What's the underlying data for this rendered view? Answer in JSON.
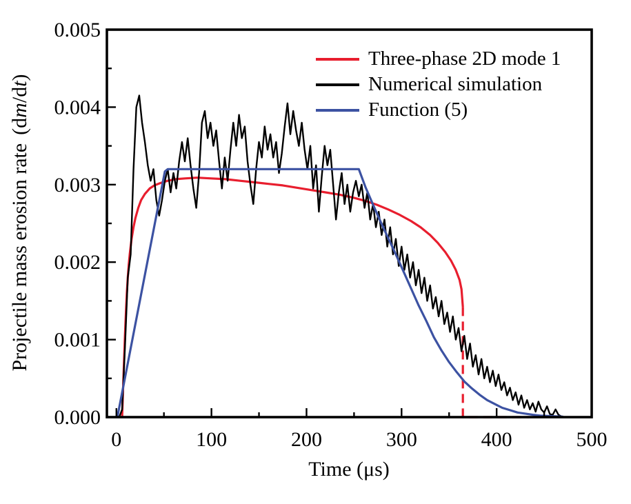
{
  "figure": {
    "x_axis_title": "Time (μs)",
    "y_axis_title_parts": {
      "prefix": "Projectile mass erosion rate",
      "open": "(d",
      "m_italic": "m",
      "slash": "/d",
      "t_italic": "t",
      "close": ")"
    }
  },
  "legend": {
    "items": [
      {
        "label": "Three-phase 2D mode 1",
        "color": "#e81e2e",
        "style": "solid"
      },
      {
        "label": "Numerical simulation",
        "color": "#000000",
        "style": "solid"
      },
      {
        "label": "Function (5)",
        "color": "#3c52a2",
        "style": "solid"
      }
    ]
  },
  "chart_data": {
    "type": "line",
    "title": "",
    "xlabel": "Time (μs)",
    "ylabel": "Projectile mass erosion rate (dm/dt)",
    "xlim": [
      -10,
      500
    ],
    "ylim": [
      0,
      0.005
    ],
    "grid": false,
    "legend_position": "upper-right-inside",
    "axes": {
      "x_major_ticks": [
        0,
        100,
        200,
        300,
        400,
        500
      ],
      "x_tick_labels": [
        "0",
        "100",
        "200",
        "300",
        "400",
        "500"
      ],
      "x_minor_ticks": [
        50,
        150,
        250,
        350,
        450
      ],
      "y_major_ticks": [
        0,
        0.001,
        0.002,
        0.003,
        0.004,
        0.005
      ],
      "y_tick_labels": [
        "0.000",
        "0.001",
        "0.002",
        "0.003",
        "0.004",
        "0.005"
      ],
      "y_minor_ticks": [
        0.0005,
        0.0015,
        0.0025,
        0.0035,
        0.0045
      ]
    },
    "series": [
      {
        "name": "Three-phase 2D mode 1",
        "color": "#e81e2e",
        "style": "solid",
        "width": 3.2,
        "y_scale": 0.001,
        "x": [
          6,
          7,
          8,
          9,
          10,
          11,
          12,
          13,
          14,
          16,
          18,
          20,
          23,
          26,
          30,
          35,
          40,
          46,
          54,
          62,
          72,
          85,
          100,
          115,
          130,
          145,
          160,
          175,
          190,
          205,
          220,
          235,
          250,
          262,
          274,
          286,
          298,
          310,
          320,
          330,
          338,
          346,
          352,
          357,
          361,
          363,
          364.5
        ],
        "y": [
          0,
          0.35,
          0.7,
          1.05,
          1.35,
          1.6,
          1.8,
          1.97,
          2.1,
          2.3,
          2.45,
          2.57,
          2.7,
          2.8,
          2.88,
          2.95,
          2.99,
          3.02,
          3.05,
          3.07,
          3.08,
          3.09,
          3.08,
          3.07,
          3.05,
          3.03,
          3.01,
          2.99,
          2.96,
          2.93,
          2.9,
          2.87,
          2.83,
          2.79,
          2.74,
          2.68,
          2.61,
          2.53,
          2.45,
          2.35,
          2.25,
          2.13,
          2.02,
          1.9,
          1.77,
          1.65,
          1.42
        ]
      },
      {
        "name": "Three-phase 2D mode 1 cutoff (dashed)",
        "color": "#e81e2e",
        "style": "dashed",
        "width": 3.2,
        "y_scale": 0.001,
        "x": [
          364.5,
          364.5,
          434
        ],
        "y": [
          1.42,
          0,
          0
        ]
      },
      {
        "name": "Numerical simulation",
        "color": "#000000",
        "style": "solid",
        "width": 2.4,
        "y_scale": 0.001,
        "x_start": 0,
        "x_step": 3,
        "y": [
          0,
          0,
          0.1,
          0.9,
          1.8,
          2.1,
          3.2,
          4.0,
          4.15,
          3.8,
          3.55,
          3.25,
          3.05,
          3.2,
          2.8,
          2.6,
          2.8,
          3.05,
          3.2,
          2.9,
          3.15,
          2.95,
          3.3,
          3.55,
          3.3,
          3.6,
          3.25,
          2.95,
          2.7,
          3.15,
          3.8,
          3.95,
          3.6,
          3.8,
          3.5,
          3.7,
          3.3,
          2.95,
          3.35,
          3.05,
          3.45,
          3.8,
          3.5,
          3.9,
          3.6,
          3.75,
          3.3,
          3.0,
          2.75,
          3.2,
          3.55,
          3.35,
          3.75,
          3.45,
          3.65,
          3.35,
          3.55,
          3.15,
          3.4,
          3.75,
          4.05,
          3.65,
          3.95,
          3.7,
          3.5,
          3.8,
          3.45,
          3.2,
          3.5,
          2.95,
          3.25,
          2.65,
          3.1,
          3.5,
          3.25,
          3.45,
          3.0,
          2.55,
          2.9,
          3.15,
          2.75,
          3.0,
          2.65,
          2.9,
          3.05,
          2.85,
          3.0,
          2.7,
          2.9,
          2.55,
          2.75,
          2.45,
          2.65,
          2.35,
          2.55,
          2.2,
          2.45,
          2.1,
          2.3,
          1.95,
          2.2,
          1.9,
          2.1,
          1.8,
          2.0,
          1.7,
          1.9,
          1.6,
          1.8,
          1.5,
          1.7,
          1.4,
          1.55,
          1.3,
          1.5,
          1.2,
          1.35,
          1.1,
          1.3,
          1.0,
          1.15,
          0.85,
          1.05,
          0.75,
          0.95,
          0.65,
          0.8,
          0.55,
          0.75,
          0.5,
          0.65,
          0.45,
          0.6,
          0.4,
          0.55,
          0.35,
          0.45,
          0.28,
          0.38,
          0.22,
          0.32,
          0.16,
          0.28,
          0.12,
          0.22,
          0.1,
          0.18,
          0.07,
          0.2,
          0.1,
          0.06,
          0.14,
          0.04,
          0.03,
          0.1,
          0.03,
          0.01,
          0
        ]
      },
      {
        "name": "Function (5)",
        "color": "#3c52a2",
        "style": "solid",
        "width": 3.2,
        "y_scale": 0.001,
        "x": [
          1,
          51,
          54,
          255,
          262,
          270,
          278,
          286,
          294,
          302,
          310,
          318,
          326,
          334,
          342,
          350,
          358,
          366,
          374,
          382,
          390,
          398,
          406,
          414,
          422,
          430,
          438,
          446,
          454,
          462,
          470
        ],
        "y": [
          0,
          3.17,
          3.2,
          3.2,
          2.97,
          2.74,
          2.52,
          2.31,
          2.1,
          1.88,
          1.66,
          1.44,
          1.24,
          1.03,
          0.86,
          0.71,
          0.58,
          0.46,
          0.37,
          0.29,
          0.22,
          0.17,
          0.12,
          0.09,
          0.06,
          0.045,
          0.03,
          0.02,
          0.015,
          0.01,
          0.005
        ]
      }
    ]
  }
}
